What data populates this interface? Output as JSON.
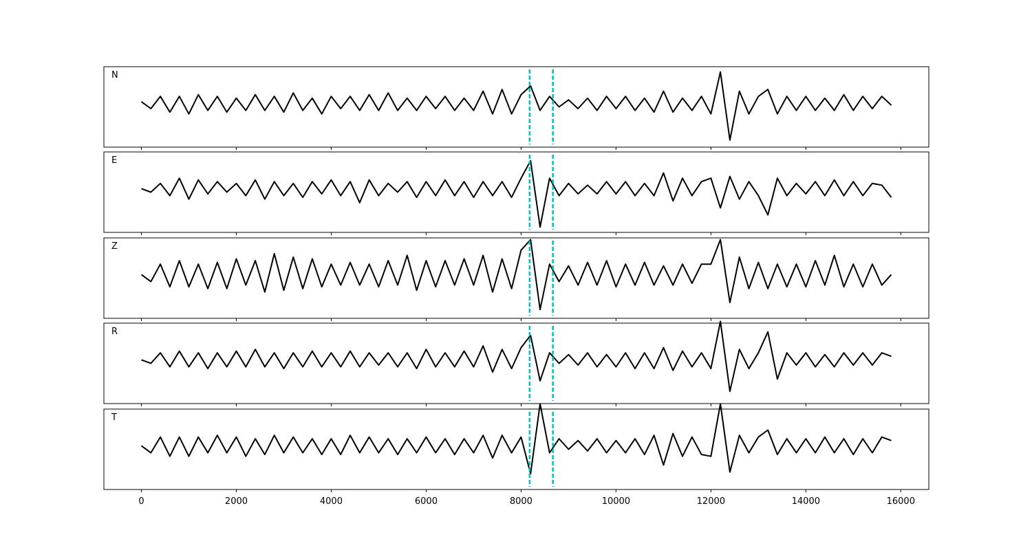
{
  "chart_data": {
    "type": "line",
    "x": [
      0,
      200,
      400,
      600,
      800,
      1000,
      1200,
      1400,
      1600,
      1800,
      2000,
      2200,
      2400,
      2600,
      2800,
      3000,
      3200,
      3400,
      3600,
      3800,
      4000,
      4200,
      4400,
      4600,
      4800,
      5000,
      5200,
      5400,
      5600,
      5800,
      6000,
      6200,
      6400,
      6600,
      6800,
      7000,
      7200,
      7400,
      7600,
      7800,
      8000,
      8200,
      8400,
      8600,
      8800,
      9000,
      9200,
      9400,
      9600,
      9800,
      10000,
      10200,
      10400,
      10600,
      10800,
      11000,
      11200,
      11400,
      11600,
      11800,
      12000,
      12200,
      12400,
      12600,
      12800,
      13000,
      13200,
      13400,
      13600,
      13800,
      14000,
      14200,
      14400,
      14600,
      14800,
      15000,
      15200,
      15400,
      15600,
      15800
    ],
    "series": [
      {
        "name": "N",
        "color": "#000000",
        "values": [
          0.05,
          -0.15,
          0.2,
          -0.25,
          0.2,
          -0.3,
          0.25,
          -0.2,
          0.2,
          -0.25,
          0.15,
          -0.2,
          0.25,
          -0.2,
          0.2,
          -0.25,
          0.3,
          -0.2,
          0.15,
          -0.3,
          0.2,
          -0.15,
          0.2,
          -0.2,
          0.25,
          -0.2,
          0.3,
          -0.2,
          0.15,
          -0.2,
          0.2,
          -0.15,
          0.2,
          -0.2,
          0.15,
          -0.2,
          0.35,
          -0.3,
          0.4,
          -0.3,
          0.25,
          0.5,
          -0.2,
          0.2,
          -0.1,
          0.1,
          -0.15,
          0.15,
          -0.2,
          0.2,
          -0.15,
          0.2,
          -0.2,
          0.15,
          -0.25,
          0.35,
          -0.25,
          0.15,
          -0.2,
          0.2,
          -0.3,
          0.9,
          -1.05,
          0.35,
          -0.3,
          0.2,
          0.4,
          -0.3,
          0.2,
          -0.2,
          0.2,
          -0.2,
          0.15,
          -0.2,
          0.25,
          -0.2,
          0.2,
          -0.15,
          0.2,
          -0.05
        ]
      },
      {
        "name": "E",
        "color": "#000000",
        "values": [
          0.0,
          -0.1,
          0.15,
          -0.2,
          0.3,
          -0.3,
          0.25,
          -0.15,
          0.2,
          -0.1,
          0.15,
          -0.2,
          0.25,
          -0.3,
          0.2,
          -0.2,
          0.15,
          -0.25,
          0.2,
          -0.15,
          0.25,
          -0.2,
          0.2,
          -0.4,
          0.25,
          -0.2,
          0.15,
          -0.1,
          0.2,
          -0.25,
          0.2,
          -0.2,
          0.25,
          -0.2,
          0.2,
          -0.25,
          0.2,
          -0.2,
          0.2,
          -0.25,
          0.3,
          0.8,
          -1.1,
          0.3,
          -0.2,
          0.15,
          -0.15,
          0.1,
          -0.15,
          0.2,
          -0.15,
          0.2,
          -0.2,
          0.15,
          -0.2,
          0.45,
          -0.35,
          0.3,
          -0.2,
          0.2,
          0.3,
          -0.55,
          0.35,
          -0.3,
          0.2,
          -0.2,
          -0.75,
          0.3,
          -0.2,
          0.15,
          -0.15,
          0.2,
          -0.2,
          0.25,
          -0.2,
          0.2,
          -0.2,
          0.15,
          0.1,
          -0.25
        ]
      },
      {
        "name": "Z",
        "color": "#000000",
        "values": [
          0.0,
          -0.2,
          0.3,
          -0.35,
          0.4,
          -0.35,
          0.3,
          -0.4,
          0.35,
          -0.4,
          0.45,
          -0.3,
          0.4,
          -0.5,
          0.6,
          -0.45,
          0.5,
          -0.4,
          0.45,
          -0.35,
          0.3,
          -0.3,
          0.35,
          -0.3,
          0.3,
          -0.35,
          0.4,
          -0.3,
          0.55,
          -0.45,
          0.4,
          -0.35,
          0.4,
          -0.3,
          0.45,
          -0.3,
          0.55,
          -0.5,
          0.45,
          -0.4,
          0.7,
          1.0,
          -1.0,
          0.3,
          -0.2,
          0.25,
          -0.3,
          0.35,
          -0.3,
          0.4,
          -0.35,
          0.3,
          -0.3,
          0.35,
          -0.3,
          0.25,
          -0.3,
          0.3,
          -0.25,
          0.3,
          0.3,
          1.0,
          -0.8,
          0.5,
          -0.4,
          0.35,
          -0.4,
          0.3,
          -0.35,
          0.3,
          -0.35,
          0.4,
          -0.3,
          0.55,
          -0.35,
          0.3,
          -0.35,
          0.3,
          -0.3,
          0.0
        ]
      },
      {
        "name": "R",
        "color": "#000000",
        "values": [
          0.0,
          -0.1,
          0.2,
          -0.2,
          0.25,
          -0.2,
          0.2,
          -0.25,
          0.2,
          -0.2,
          0.25,
          -0.2,
          0.3,
          -0.2,
          0.2,
          -0.25,
          0.2,
          -0.2,
          0.25,
          -0.2,
          0.2,
          -0.2,
          0.25,
          -0.2,
          0.2,
          -0.15,
          0.2,
          -0.2,
          0.2,
          -0.25,
          0.3,
          -0.2,
          0.2,
          -0.2,
          0.25,
          -0.2,
          0.4,
          -0.35,
          0.3,
          -0.25,
          0.35,
          0.7,
          -0.6,
          0.2,
          -0.1,
          0.15,
          -0.15,
          0.2,
          -0.2,
          0.15,
          -0.2,
          0.2,
          -0.25,
          0.2,
          -0.25,
          0.35,
          -0.3,
          0.25,
          -0.2,
          0.2,
          -0.25,
          1.1,
          -0.9,
          0.3,
          -0.25,
          0.2,
          0.8,
          -0.55,
          0.2,
          -0.15,
          0.2,
          -0.2,
          0.15,
          -0.2,
          0.2,
          -0.15,
          0.2,
          -0.15,
          0.2,
          0.1
        ]
      },
      {
        "name": "T",
        "color": "#000000",
        "values": [
          0.0,
          -0.2,
          0.25,
          -0.3,
          0.25,
          -0.3,
          0.25,
          -0.2,
          0.3,
          -0.2,
          0.25,
          -0.3,
          0.2,
          -0.25,
          0.3,
          -0.2,
          0.25,
          -0.2,
          0.2,
          -0.25,
          0.2,
          -0.25,
          0.3,
          -0.2,
          0.25,
          -0.2,
          0.2,
          -0.25,
          0.2,
          -0.2,
          0.25,
          -0.2,
          0.2,
          -0.25,
          0.2,
          -0.2,
          0.3,
          -0.35,
          0.3,
          -0.2,
          0.25,
          -0.8,
          1.2,
          -0.2,
          0.2,
          -0.1,
          0.15,
          -0.15,
          0.2,
          -0.2,
          0.15,
          -0.2,
          0.2,
          -0.25,
          0.3,
          -0.55,
          0.35,
          -0.3,
          0.25,
          -0.25,
          -0.3,
          1.2,
          -0.75,
          0.3,
          -0.2,
          0.25,
          0.45,
          -0.25,
          0.2,
          -0.2,
          0.2,
          -0.2,
          0.25,
          -0.2,
          0.2,
          -0.25,
          0.2,
          -0.2,
          0.25,
          0.15
        ]
      }
    ],
    "xlim": [
      -790,
      16590
    ],
    "ylim": [
      -1.25,
      1.05
    ],
    "xticks": [
      0,
      2000,
      4000,
      6000,
      8000,
      10000,
      12000,
      14000,
      16000
    ],
    "vlines": [
      8180,
      8670
    ],
    "vline_color": "#00bfbf"
  }
}
